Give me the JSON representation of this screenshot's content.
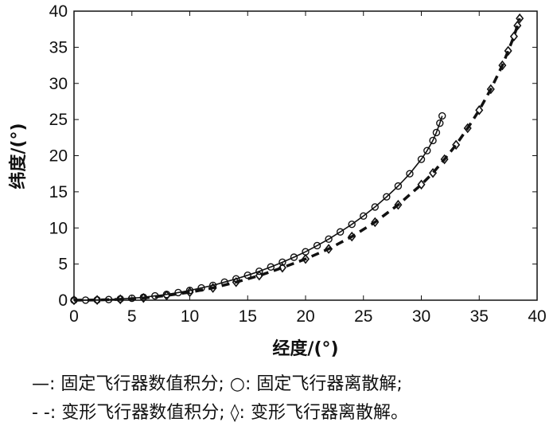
{
  "chart_data": {
    "type": "line",
    "xlabel": "经度/(°)",
    "ylabel": "纬度/(°)",
    "xlim": [
      0,
      40
    ],
    "ylim": [
      0,
      40
    ],
    "xticks": [
      "0",
      "5",
      "10",
      "15",
      "20",
      "25",
      "30",
      "35",
      "40"
    ],
    "yticks": [
      "0",
      "5",
      "10",
      "15",
      "20",
      "25",
      "30",
      "35",
      "40"
    ],
    "grid": false,
    "series": [
      {
        "name": "固定飞行器数值积分",
        "style": "solid",
        "marker": "circle",
        "x": [
          0,
          1,
          2,
          3,
          4,
          5,
          6,
          7,
          8,
          9,
          10,
          11,
          12,
          13,
          14,
          15,
          16,
          17,
          18,
          19,
          20,
          21,
          22,
          23,
          24,
          25,
          26,
          27,
          28,
          29,
          30,
          30.5,
          31,
          31.3,
          31.6,
          31.8
        ],
        "y": [
          0,
          0.01,
          0.04,
          0.09,
          0.17,
          0.27,
          0.4,
          0.6,
          0.8,
          1.05,
          1.35,
          1.7,
          2.05,
          2.5,
          2.95,
          3.45,
          4.0,
          4.6,
          5.25,
          5.95,
          6.7,
          7.55,
          8.45,
          9.45,
          10.5,
          11.65,
          12.9,
          14.3,
          15.8,
          17.5,
          19.5,
          20.7,
          22.1,
          23.2,
          24.5,
          25.5
        ]
      },
      {
        "name": "变形飞行器数值积分",
        "style": "dashed",
        "marker": "diamond",
        "x": [
          0,
          2,
          4,
          6,
          8,
          10,
          12,
          14,
          16,
          18,
          20,
          22,
          24,
          26,
          28,
          30,
          31,
          32,
          33,
          34,
          35,
          36,
          37,
          37.5,
          38,
          38.3,
          38.5
        ],
        "y": [
          0,
          0.03,
          0.12,
          0.3,
          0.65,
          1.1,
          1.7,
          2.5,
          3.4,
          4.5,
          5.7,
          7.1,
          8.8,
          10.8,
          13.2,
          16.0,
          17.6,
          19.5,
          21.5,
          23.8,
          26.3,
          29.2,
          32.5,
          34.5,
          36.5,
          38,
          39
        ]
      }
    ],
    "legend": {
      "line1": "—: 固定飞行器数值积分; ○: 固定飞行器离散解;",
      "line2": "- -: 变形飞行器数值积分; ◊: 变形飞行器离散解。"
    },
    "legend_placement": "bottom"
  }
}
